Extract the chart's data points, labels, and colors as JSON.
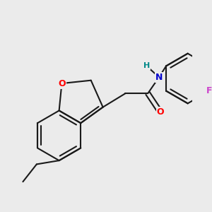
{
  "bg_color": "#ebebeb",
  "bond_color": "#1a1a1a",
  "atom_colors": {
    "O": "#ff0000",
    "N": "#0000cc",
    "F": "#cc44cc",
    "H": "#008888",
    "C": "#1a1a1a"
  },
  "bond_width": 1.5,
  "font_size": 10
}
